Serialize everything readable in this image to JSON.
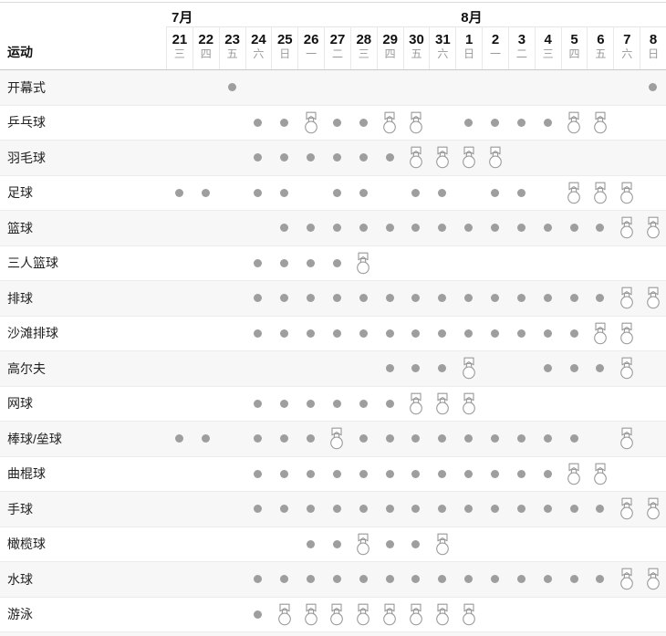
{
  "table": {
    "sport_column_label": "运动",
    "months": [
      {
        "label": "7月"
      },
      {
        "label": "8月"
      }
    ],
    "days": [
      {
        "date": "21",
        "weekday": "三"
      },
      {
        "date": "22",
        "weekday": "四"
      },
      {
        "date": "23",
        "weekday": "五"
      },
      {
        "date": "24",
        "weekday": "六"
      },
      {
        "date": "25",
        "weekday": "日"
      },
      {
        "date": "26",
        "weekday": "一"
      },
      {
        "date": "27",
        "weekday": "二"
      },
      {
        "date": "28",
        "weekday": "三"
      },
      {
        "date": "29",
        "weekday": "四"
      },
      {
        "date": "30",
        "weekday": "五"
      },
      {
        "date": "31",
        "weekday": "六"
      },
      {
        "date": "1",
        "weekday": "日"
      },
      {
        "date": "2",
        "weekday": "一"
      },
      {
        "date": "3",
        "weekday": "二"
      },
      {
        "date": "4",
        "weekday": "三"
      },
      {
        "date": "5",
        "weekday": "四"
      },
      {
        "date": "6",
        "weekday": "五"
      },
      {
        "date": "7",
        "weekday": "六"
      },
      {
        "date": "8",
        "weekday": "日"
      }
    ],
    "rows": [
      {
        "sport": "开幕式",
        "cells": [
          "",
          "",
          "dot",
          "",
          "",
          "",
          "",
          "",
          "",
          "",
          "",
          "",
          "",
          "",
          "",
          "",
          "",
          "",
          "dot"
        ]
      },
      {
        "sport": "乒乓球",
        "cells": [
          "",
          "",
          "",
          "dot",
          "dot",
          "medal",
          "dot",
          "dot",
          "medal",
          "medal",
          "",
          "dot",
          "dot",
          "dot",
          "dot",
          "medal",
          "medal",
          "",
          ""
        ]
      },
      {
        "sport": "羽毛球",
        "cells": [
          "",
          "",
          "",
          "dot",
          "dot",
          "dot",
          "dot",
          "dot",
          "dot",
          "medal",
          "medal",
          "medal",
          "medal",
          "",
          "",
          "",
          "",
          "",
          ""
        ]
      },
      {
        "sport": "足球",
        "cells": [
          "dot",
          "dot",
          "",
          "dot",
          "dot",
          "",
          "dot",
          "dot",
          "",
          "dot",
          "dot",
          "",
          "dot",
          "dot",
          "",
          "medal",
          "medal",
          "medal",
          ""
        ]
      },
      {
        "sport": "篮球",
        "cells": [
          "",
          "",
          "",
          "",
          "dot",
          "dot",
          "dot",
          "dot",
          "dot",
          "dot",
          "dot",
          "dot",
          "dot",
          "dot",
          "dot",
          "dot",
          "dot",
          "medal",
          "medal"
        ]
      },
      {
        "sport": "三人篮球",
        "cells": [
          "",
          "",
          "",
          "dot",
          "dot",
          "dot",
          "dot",
          "medal",
          "",
          "",
          "",
          "",
          "",
          "",
          "",
          "",
          "",
          "",
          ""
        ]
      },
      {
        "sport": "排球",
        "cells": [
          "",
          "",
          "",
          "dot",
          "dot",
          "dot",
          "dot",
          "dot",
          "dot",
          "dot",
          "dot",
          "dot",
          "dot",
          "dot",
          "dot",
          "dot",
          "dot",
          "medal",
          "medal"
        ]
      },
      {
        "sport": "沙滩排球",
        "cells": [
          "",
          "",
          "",
          "dot",
          "dot",
          "dot",
          "dot",
          "dot",
          "dot",
          "dot",
          "dot",
          "dot",
          "dot",
          "dot",
          "dot",
          "dot",
          "medal",
          "medal",
          ""
        ]
      },
      {
        "sport": "高尔夫",
        "cells": [
          "",
          "",
          "",
          "",
          "",
          "",
          "",
          "",
          "dot",
          "dot",
          "dot",
          "medal",
          "",
          "",
          "dot",
          "dot",
          "dot",
          "medal",
          ""
        ]
      },
      {
        "sport": "网球",
        "cells": [
          "",
          "",
          "",
          "dot",
          "dot",
          "dot",
          "dot",
          "dot",
          "dot",
          "medal",
          "medal",
          "medal",
          "",
          "",
          "",
          "",
          "",
          "",
          ""
        ]
      },
      {
        "sport": "棒球/垒球",
        "cells": [
          "dot",
          "dot",
          "",
          "dot",
          "dot",
          "dot",
          "medal",
          "dot",
          "dot",
          "dot",
          "dot",
          "dot",
          "dot",
          "dot",
          "dot",
          "dot",
          "",
          "medal",
          ""
        ]
      },
      {
        "sport": "曲棍球",
        "cells": [
          "",
          "",
          "",
          "dot",
          "dot",
          "dot",
          "dot",
          "dot",
          "dot",
          "dot",
          "dot",
          "dot",
          "dot",
          "dot",
          "dot",
          "medal",
          "medal",
          "",
          ""
        ]
      },
      {
        "sport": "手球",
        "cells": [
          "",
          "",
          "",
          "dot",
          "dot",
          "dot",
          "dot",
          "dot",
          "dot",
          "dot",
          "dot",
          "dot",
          "dot",
          "dot",
          "dot",
          "dot",
          "dot",
          "medal",
          "medal"
        ]
      },
      {
        "sport": "橄榄球",
        "cells": [
          "",
          "",
          "",
          "",
          "",
          "dot",
          "dot",
          "medal",
          "dot",
          "dot",
          "medal",
          "",
          "",
          "",
          "",
          "",
          "",
          "",
          ""
        ]
      },
      {
        "sport": "水球",
        "cells": [
          "",
          "",
          "",
          "dot",
          "dot",
          "dot",
          "dot",
          "dot",
          "dot",
          "dot",
          "dot",
          "dot",
          "dot",
          "dot",
          "dot",
          "dot",
          "dot",
          "medal",
          "medal"
        ]
      },
      {
        "sport": "游泳",
        "cells": [
          "",
          "",
          "",
          "dot",
          "medal",
          "medal",
          "medal",
          "medal",
          "medal",
          "medal",
          "medal",
          "medal",
          "",
          "",
          "",
          "",
          "",
          "",
          ""
        ]
      }
    ]
  },
  "colors": {
    "dot": "#9e9e9e",
    "medal_outline": "#999999",
    "alt_row_bg": "#f7f7f7",
    "date_text": "#111111",
    "weekday_text": "#999999",
    "sport_text": "#222222"
  }
}
